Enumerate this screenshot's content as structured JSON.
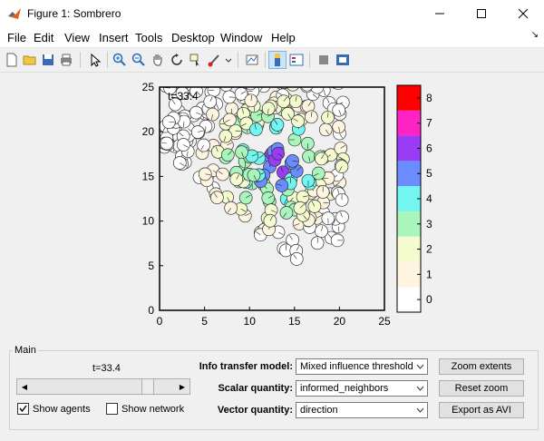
{
  "window": {
    "title": "Figure 1: Sombrero"
  },
  "menu": [
    "File",
    "Edit",
    "View",
    "Insert",
    "Tools",
    "Desktop",
    "Window",
    "Help"
  ],
  "plot": {
    "time_label": "t=33.4",
    "xticks": [
      "0",
      "5",
      "10",
      "15",
      "20",
      "25"
    ],
    "yticks": [
      "0",
      "5",
      "10",
      "15",
      "20",
      "25"
    ]
  },
  "colorbar": {
    "ticks": [
      "0",
      "1",
      "2",
      "3",
      "4",
      "5",
      "6",
      "7",
      "8"
    ],
    "colors": [
      "#ffffff",
      "#fff4df",
      "#f3fbcf",
      "#aaf5bb",
      "#73f5f0",
      "#6a8cff",
      "#9a3cf6",
      "#ff23c6",
      "#ff0000"
    ]
  },
  "panel": {
    "title": "Main",
    "time_label": "t=33.4",
    "show_agents_label": "Show agents",
    "show_agents_checked": true,
    "show_network_label": "Show network",
    "show_network_checked": false,
    "info_model_label": "Info transfer model:",
    "info_model_value": "Mixed influence threshold...",
    "scalar_label": "Scalar quantity:",
    "scalar_value": "informed_neighbors",
    "vector_label": "Vector quantity:",
    "vector_value": "direction",
    "zoom_extents_label": "Zoom extents",
    "reset_zoom_label": "Reset zoom",
    "export_label": "Export as AVI"
  }
}
